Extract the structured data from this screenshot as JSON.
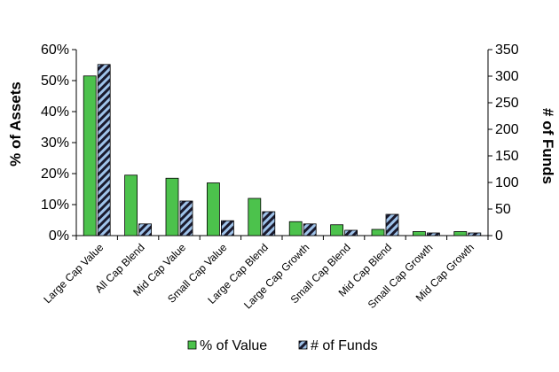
{
  "chart_data": {
    "type": "bar",
    "categories": [
      "Large Cap Value",
      "All Cap Blend",
      "Mid Cap Value",
      "Small Cap Value",
      "Large Cap Blend",
      "Large Cap Growth",
      "Small Cap Blend",
      "Mid Cap Blend",
      "Small Cap Growth",
      "Mid Cap Growth"
    ],
    "series": [
      {
        "name": "% of Value",
        "axis": "left",
        "unit": "percent",
        "values": [
          51.5,
          19.5,
          18.5,
          17,
          12,
          4.5,
          3.5,
          2,
          1.3,
          1.3
        ],
        "color": "#4cc24c"
      },
      {
        "name": "# of Funds",
        "axis": "right",
        "values": [
          322,
          22,
          65,
          28,
          45,
          22,
          10,
          40,
          5,
          5
        ],
        "color": "#9fc3ea",
        "pattern": "hatch"
      }
    ],
    "ylabel": "% of Assets",
    "y2label": "# of Funds",
    "ylim": [
      0,
      60
    ],
    "y2lim": [
      0,
      350
    ],
    "yticks": [
      "0%",
      "10%",
      "20%",
      "30%",
      "40%",
      "50%",
      "60%"
    ],
    "y2ticks": [
      "0",
      "50",
      "100",
      "150",
      "200",
      "250",
      "300",
      "350"
    ],
    "legend_position": "bottom",
    "grid": false
  }
}
